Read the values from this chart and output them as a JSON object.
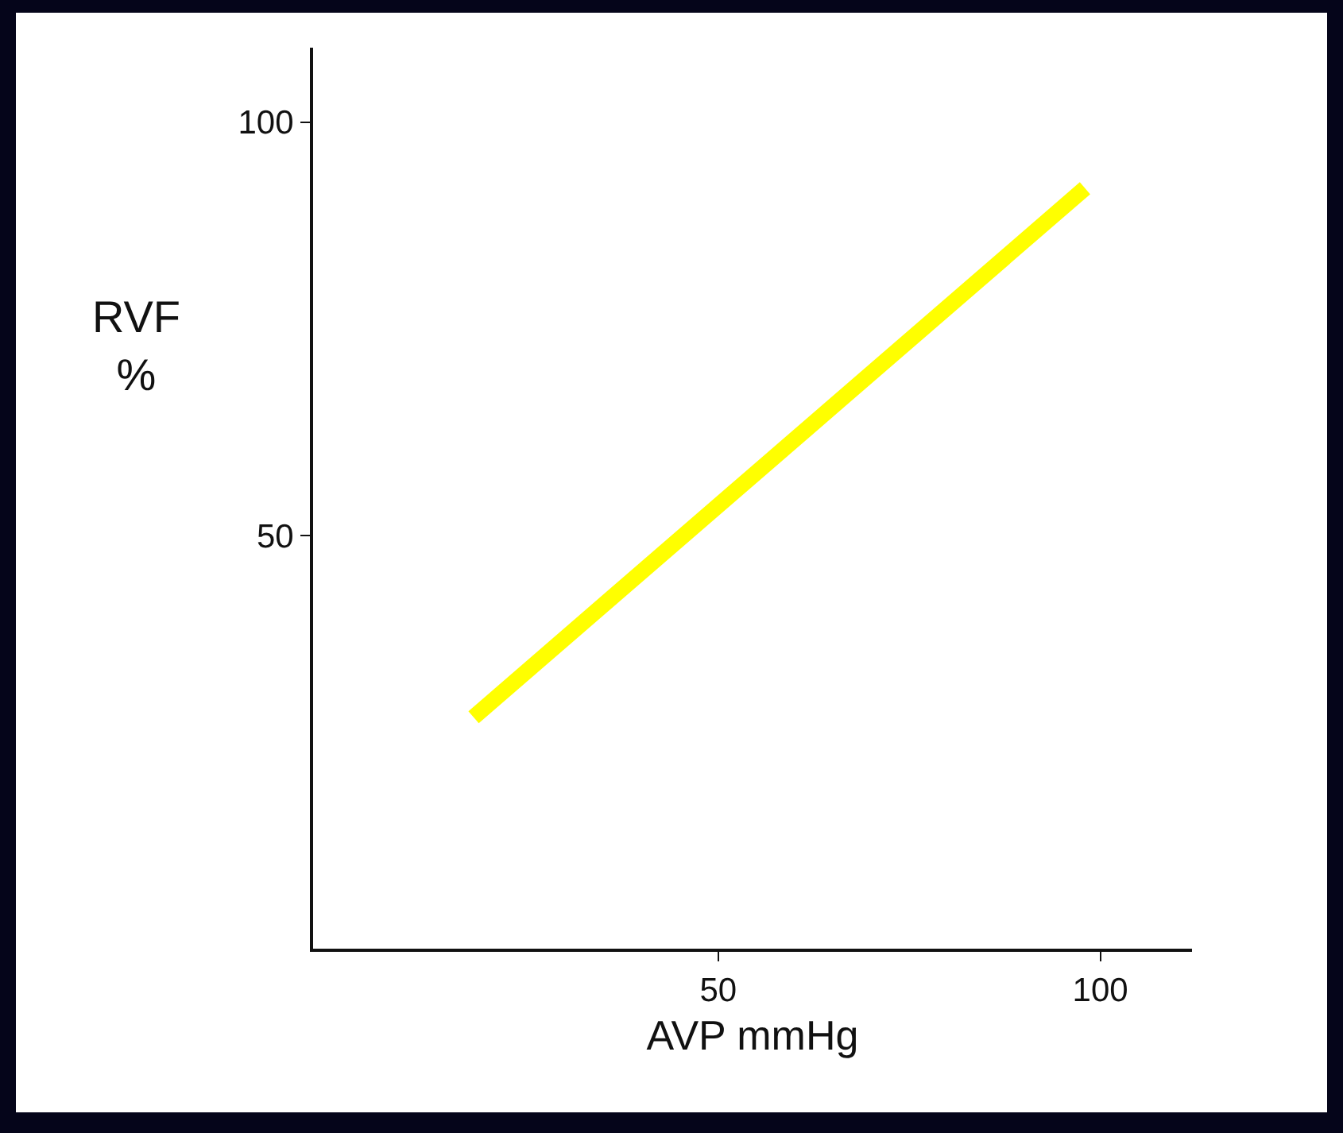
{
  "chart_data": {
    "type": "line",
    "xlabel": "AVP mmHg",
    "ylabel": "RVF\n%",
    "x": [
      18,
      98
    ],
    "series": [
      {
        "color": "#ffff00",
        "values": [
          28,
          92
        ]
      }
    ],
    "xlim": [
      -3,
      112
    ],
    "ylim": [
      0,
      109
    ],
    "xticks": [
      50,
      100
    ],
    "yticks": [
      50,
      100
    ],
    "grid": false,
    "marker": "none",
    "line_style": "solid"
  }
}
